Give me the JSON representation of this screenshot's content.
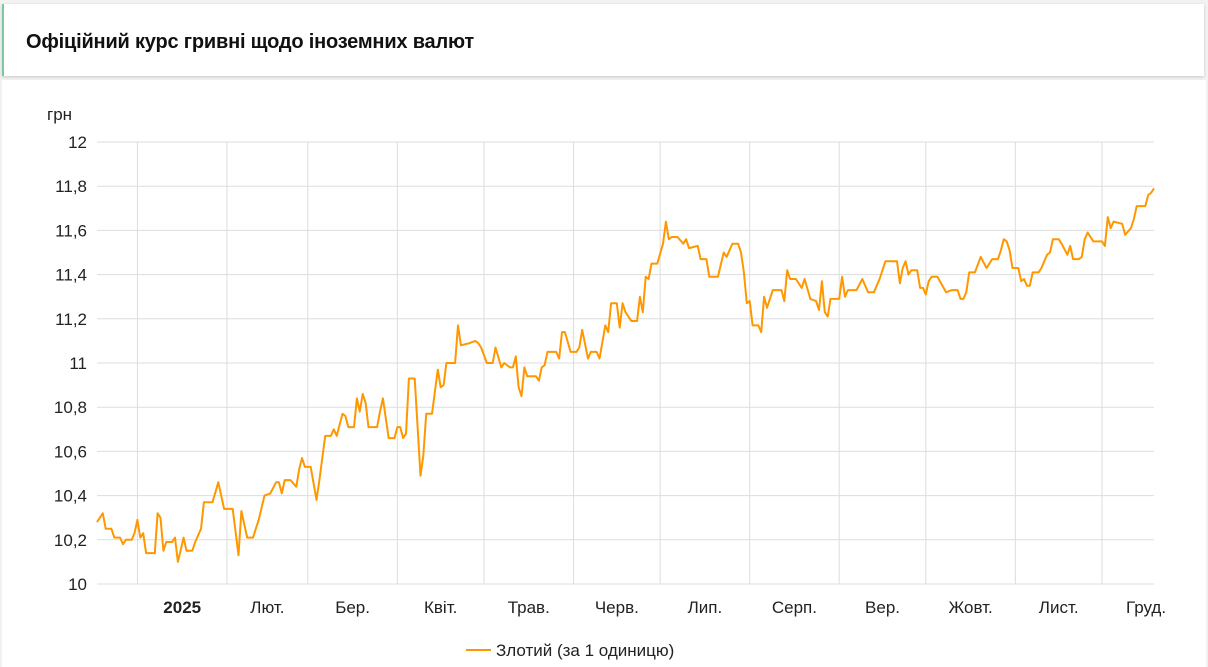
{
  "header": {
    "title": "Офіційний курс гривні щодо іноземних валют"
  },
  "chart_data": {
    "type": "line",
    "title": "",
    "ylabel": "грн",
    "xlabel": "",
    "ylim": [
      10,
      12
    ],
    "xlim": [
      "2024-12-18",
      "2025-12-19"
    ],
    "y_ticks": [
      "10",
      "10,2",
      "10,4",
      "10,6",
      "10,8",
      "11",
      "11,2",
      "11,4",
      "11,6",
      "11,8",
      "12"
    ],
    "y_tick_values": [
      10,
      10.2,
      10.4,
      10.6,
      10.8,
      11,
      11.2,
      11.4,
      11.6,
      11.8,
      12
    ],
    "x_ticks": [
      {
        "label": "2025",
        "month": "2025-01",
        "bold": true
      },
      {
        "label": "Лют.",
        "month": "2025-02"
      },
      {
        "label": "Бер.",
        "month": "2025-03"
      },
      {
        "label": "Квіт.",
        "month": "2025-04"
      },
      {
        "label": "Трав.",
        "month": "2025-05"
      },
      {
        "label": "Черв.",
        "month": "2025-06"
      },
      {
        "label": "Лип.",
        "month": "2025-07"
      },
      {
        "label": "Серп.",
        "month": "2025-08"
      },
      {
        "label": "Вер.",
        "month": "2025-09"
      },
      {
        "label": "Жовт.",
        "month": "2025-10"
      },
      {
        "label": "Лист.",
        "month": "2025-11"
      },
      {
        "label": "Груд.",
        "month": "2025-12"
      }
    ],
    "grid": true,
    "legend_position": "bottom",
    "colors": {
      "series": "#ff9800",
      "grid": "#dddddd"
    },
    "series": [
      {
        "name": "Злотий (за 1 одиницю)",
        "points": [
          [
            "2024-12-18",
            10.28
          ],
          [
            "2024-12-20",
            10.32
          ],
          [
            "2024-12-21",
            10.25
          ],
          [
            "2024-12-23",
            10.25
          ],
          [
            "2024-12-24",
            10.21
          ],
          [
            "2024-12-26",
            10.21
          ],
          [
            "2024-12-27",
            10.18
          ],
          [
            "2024-12-28",
            10.2
          ],
          [
            "2024-12-30",
            10.2
          ],
          [
            "2024-12-31",
            10.23
          ],
          [
            "2025-01-01",
            10.29
          ],
          [
            "2025-01-02",
            10.21
          ],
          [
            "2025-01-03",
            10.23
          ],
          [
            "2025-01-04",
            10.14
          ],
          [
            "2025-01-07",
            10.14
          ],
          [
            "2025-01-08",
            10.32
          ],
          [
            "2025-01-09",
            10.3
          ],
          [
            "2025-01-10",
            10.15
          ],
          [
            "2025-01-11",
            10.19
          ],
          [
            "2025-01-13",
            10.19
          ],
          [
            "2025-01-14",
            10.21
          ],
          [
            "2025-01-15",
            10.1
          ],
          [
            "2025-01-17",
            10.21
          ],
          [
            "2025-01-18",
            10.15
          ],
          [
            "2025-01-20",
            10.15
          ],
          [
            "2025-01-21",
            10.19
          ],
          [
            "2025-01-23",
            10.25
          ],
          [
            "2025-01-24",
            10.37
          ],
          [
            "2025-01-27",
            10.37
          ],
          [
            "2025-01-29",
            10.46
          ],
          [
            "2025-01-31",
            10.34
          ],
          [
            "2025-02-03",
            10.34
          ],
          [
            "2025-02-05",
            10.13
          ],
          [
            "2025-02-06",
            10.33
          ],
          [
            "2025-02-08",
            10.21
          ],
          [
            "2025-02-10",
            10.21
          ],
          [
            "2025-02-11",
            10.25
          ],
          [
            "2025-02-12",
            10.29
          ],
          [
            "2025-02-14",
            10.4
          ],
          [
            "2025-02-16",
            10.41
          ],
          [
            "2025-02-18",
            10.46
          ],
          [
            "2025-02-19",
            10.46
          ],
          [
            "2025-02-20",
            10.41
          ],
          [
            "2025-02-21",
            10.47
          ],
          [
            "2025-02-23",
            10.47
          ],
          [
            "2025-02-25",
            10.44
          ],
          [
            "2025-02-26",
            10.52
          ],
          [
            "2025-02-27",
            10.57
          ],
          [
            "2025-02-28",
            10.53
          ],
          [
            "2025-03-02",
            10.53
          ],
          [
            "2025-03-04",
            10.38
          ],
          [
            "2025-03-05",
            10.47
          ],
          [
            "2025-03-07",
            10.67
          ],
          [
            "2025-03-09",
            10.67
          ],
          [
            "2025-03-10",
            10.7
          ],
          [
            "2025-03-11",
            10.67
          ],
          [
            "2025-03-13",
            10.77
          ],
          [
            "2025-03-14",
            10.76
          ],
          [
            "2025-03-15",
            10.71
          ],
          [
            "2025-03-17",
            10.71
          ],
          [
            "2025-03-18",
            10.84
          ],
          [
            "2025-03-19",
            10.78
          ],
          [
            "2025-03-20",
            10.86
          ],
          [
            "2025-03-21",
            10.82
          ],
          [
            "2025-03-22",
            10.71
          ],
          [
            "2025-03-25",
            10.71
          ],
          [
            "2025-03-26",
            10.78
          ],
          [
            "2025-03-27",
            10.84
          ],
          [
            "2025-03-29",
            10.66
          ],
          [
            "2025-03-31",
            10.66
          ],
          [
            "2025-04-01",
            10.71
          ],
          [
            "2025-04-02",
            10.71
          ],
          [
            "2025-04-03",
            10.66
          ],
          [
            "2025-04-04",
            10.68
          ],
          [
            "2025-04-05",
            10.93
          ],
          [
            "2025-04-07",
            10.93
          ],
          [
            "2025-04-09",
            10.49
          ],
          [
            "2025-04-10",
            10.58
          ],
          [
            "2025-04-11",
            10.77
          ],
          [
            "2025-04-13",
            10.77
          ],
          [
            "2025-04-15",
            10.97
          ],
          [
            "2025-04-16",
            10.89
          ],
          [
            "2025-04-17",
            10.9
          ],
          [
            "2025-04-18",
            11.0
          ],
          [
            "2025-04-21",
            11.0
          ],
          [
            "2025-04-22",
            11.17
          ],
          [
            "2025-04-23",
            11.08
          ],
          [
            "2025-04-26",
            11.09
          ],
          [
            "2025-04-28",
            11.1
          ],
          [
            "2025-04-29",
            11.09
          ],
          [
            "2025-04-30",
            11.07
          ],
          [
            "2025-05-02",
            11.0
          ],
          [
            "2025-05-04",
            11.0
          ],
          [
            "2025-05-05",
            11.07
          ],
          [
            "2025-05-07",
            10.98
          ],
          [
            "2025-05-08",
            11.0
          ],
          [
            "2025-05-10",
            10.98
          ],
          [
            "2025-05-11",
            10.98
          ],
          [
            "2025-05-12",
            11.03
          ],
          [
            "2025-05-13",
            10.89
          ],
          [
            "2025-05-14",
            10.85
          ],
          [
            "2025-05-15",
            10.98
          ],
          [
            "2025-05-16",
            10.94
          ],
          [
            "2025-05-19",
            10.94
          ],
          [
            "2025-05-20",
            10.92
          ],
          [
            "2025-05-21",
            10.98
          ],
          [
            "2025-05-22",
            10.99
          ],
          [
            "2025-05-23",
            11.05
          ],
          [
            "2025-05-26",
            11.05
          ],
          [
            "2025-05-27",
            11.02
          ],
          [
            "2025-05-28",
            11.14
          ],
          [
            "2025-05-29",
            11.14
          ],
          [
            "2025-05-31",
            11.05
          ],
          [
            "2025-06-02",
            11.05
          ],
          [
            "2025-06-03",
            11.07
          ],
          [
            "2025-06-04",
            11.15
          ],
          [
            "2025-06-06",
            11.02
          ],
          [
            "2025-06-07",
            11.05
          ],
          [
            "2025-06-09",
            11.05
          ],
          [
            "2025-06-10",
            11.02
          ],
          [
            "2025-06-12",
            11.17
          ],
          [
            "2025-06-13",
            11.14
          ],
          [
            "2025-06-14",
            11.27
          ],
          [
            "2025-06-16",
            11.27
          ],
          [
            "2025-06-17",
            11.16
          ],
          [
            "2025-06-18",
            11.27
          ],
          [
            "2025-06-19",
            11.23
          ],
          [
            "2025-06-21",
            11.19
          ],
          [
            "2025-06-23",
            11.19
          ],
          [
            "2025-06-24",
            11.3
          ],
          [
            "2025-06-25",
            11.23
          ],
          [
            "2025-06-26",
            11.39
          ],
          [
            "2025-06-27",
            11.38
          ],
          [
            "2025-06-28",
            11.45
          ],
          [
            "2025-06-30",
            11.45
          ],
          [
            "2025-07-02",
            11.54
          ],
          [
            "2025-07-03",
            11.64
          ],
          [
            "2025-07-04",
            11.56
          ],
          [
            "2025-07-05",
            11.57
          ],
          [
            "2025-07-07",
            11.57
          ],
          [
            "2025-07-09",
            11.54
          ],
          [
            "2025-07-10",
            11.56
          ],
          [
            "2025-07-11",
            11.52
          ],
          [
            "2025-07-14",
            11.53
          ],
          [
            "2025-07-15",
            11.47
          ],
          [
            "2025-07-17",
            11.47
          ],
          [
            "2025-07-18",
            11.39
          ],
          [
            "2025-07-21",
            11.39
          ],
          [
            "2025-07-23",
            11.5
          ],
          [
            "2025-07-24",
            11.48
          ],
          [
            "2025-07-26",
            11.54
          ],
          [
            "2025-07-28",
            11.54
          ],
          [
            "2025-07-29",
            11.5
          ],
          [
            "2025-07-30",
            11.41
          ],
          [
            "2025-07-31",
            11.27
          ],
          [
            "2025-08-01",
            11.28
          ],
          [
            "2025-08-02",
            11.17
          ],
          [
            "2025-08-04",
            11.17
          ],
          [
            "2025-08-05",
            11.14
          ],
          [
            "2025-08-06",
            11.3
          ],
          [
            "2025-08-07",
            11.25
          ],
          [
            "2025-08-09",
            11.33
          ],
          [
            "2025-08-12",
            11.33
          ],
          [
            "2025-08-13",
            11.28
          ],
          [
            "2025-08-14",
            11.42
          ],
          [
            "2025-08-15",
            11.38
          ],
          [
            "2025-08-17",
            11.38
          ],
          [
            "2025-08-19",
            11.34
          ],
          [
            "2025-08-20",
            11.38
          ],
          [
            "2025-08-22",
            11.29
          ],
          [
            "2025-08-24",
            11.28
          ],
          [
            "2025-08-25",
            11.24
          ],
          [
            "2025-08-26",
            11.37
          ],
          [
            "2025-08-27",
            11.23
          ],
          [
            "2025-08-28",
            11.21
          ],
          [
            "2025-08-29",
            11.29
          ],
          [
            "2025-09-01",
            11.29
          ],
          [
            "2025-09-02",
            11.39
          ],
          [
            "2025-09-03",
            11.3
          ],
          [
            "2025-09-04",
            11.33
          ],
          [
            "2025-09-07",
            11.33
          ],
          [
            "2025-09-09",
            11.38
          ],
          [
            "2025-09-11",
            11.32
          ],
          [
            "2025-09-13",
            11.32
          ],
          [
            "2025-09-15",
            11.38
          ],
          [
            "2025-09-17",
            11.46
          ],
          [
            "2025-09-21",
            11.46
          ],
          [
            "2025-09-22",
            11.36
          ],
          [
            "2025-09-23",
            11.43
          ],
          [
            "2025-09-24",
            11.46
          ],
          [
            "2025-09-25",
            11.4
          ],
          [
            "2025-09-26",
            11.42
          ],
          [
            "2025-09-28",
            11.42
          ],
          [
            "2025-09-29",
            11.34
          ],
          [
            "2025-09-30",
            11.34
          ],
          [
            "2025-10-01",
            11.31
          ],
          [
            "2025-10-02",
            11.37
          ],
          [
            "2025-10-03",
            11.39
          ],
          [
            "2025-10-05",
            11.39
          ],
          [
            "2025-10-08",
            11.32
          ],
          [
            "2025-10-10",
            11.33
          ],
          [
            "2025-10-12",
            11.33
          ],
          [
            "2025-10-13",
            11.29
          ],
          [
            "2025-10-14",
            11.29
          ],
          [
            "2025-10-15",
            11.32
          ],
          [
            "2025-10-16",
            11.41
          ],
          [
            "2025-10-18",
            11.41
          ],
          [
            "2025-10-20",
            11.48
          ],
          [
            "2025-10-22",
            11.43
          ],
          [
            "2025-10-24",
            11.47
          ],
          [
            "2025-10-26",
            11.47
          ],
          [
            "2025-10-27",
            11.51
          ],
          [
            "2025-10-28",
            11.56
          ],
          [
            "2025-10-29",
            11.55
          ],
          [
            "2025-10-30",
            11.51
          ],
          [
            "2025-10-31",
            11.43
          ],
          [
            "2025-11-02",
            11.43
          ],
          [
            "2025-11-03",
            11.37
          ],
          [
            "2025-11-04",
            11.38
          ],
          [
            "2025-11-05",
            11.35
          ],
          [
            "2025-11-06",
            11.35
          ],
          [
            "2025-11-07",
            11.41
          ],
          [
            "2025-11-09",
            11.41
          ],
          [
            "2025-11-10",
            11.43
          ],
          [
            "2025-11-12",
            11.49
          ],
          [
            "2025-11-13",
            11.5
          ],
          [
            "2025-11-14",
            11.56
          ],
          [
            "2025-11-16",
            11.56
          ],
          [
            "2025-11-17",
            11.54
          ],
          [
            "2025-11-19",
            11.49
          ],
          [
            "2025-11-20",
            11.53
          ],
          [
            "2025-11-21",
            11.47
          ],
          [
            "2025-11-23",
            11.47
          ],
          [
            "2025-11-24",
            11.48
          ],
          [
            "2025-11-25",
            11.56
          ],
          [
            "2025-11-26",
            11.59
          ],
          [
            "2025-11-28",
            11.55
          ],
          [
            "2025-12-01",
            11.55
          ],
          [
            "2025-12-02",
            11.53
          ],
          [
            "2025-12-03",
            11.66
          ],
          [
            "2025-12-04",
            11.61
          ],
          [
            "2025-12-05",
            11.64
          ],
          [
            "2025-12-08",
            11.63
          ],
          [
            "2025-12-09",
            11.58
          ],
          [
            "2025-12-11",
            11.61
          ],
          [
            "2025-12-12",
            11.65
          ],
          [
            "2025-12-13",
            11.71
          ],
          [
            "2025-12-16",
            11.71
          ],
          [
            "2025-12-17",
            11.76
          ],
          [
            "2025-12-18",
            11.77
          ],
          [
            "2025-12-19",
            11.79
          ]
        ]
      }
    ]
  }
}
